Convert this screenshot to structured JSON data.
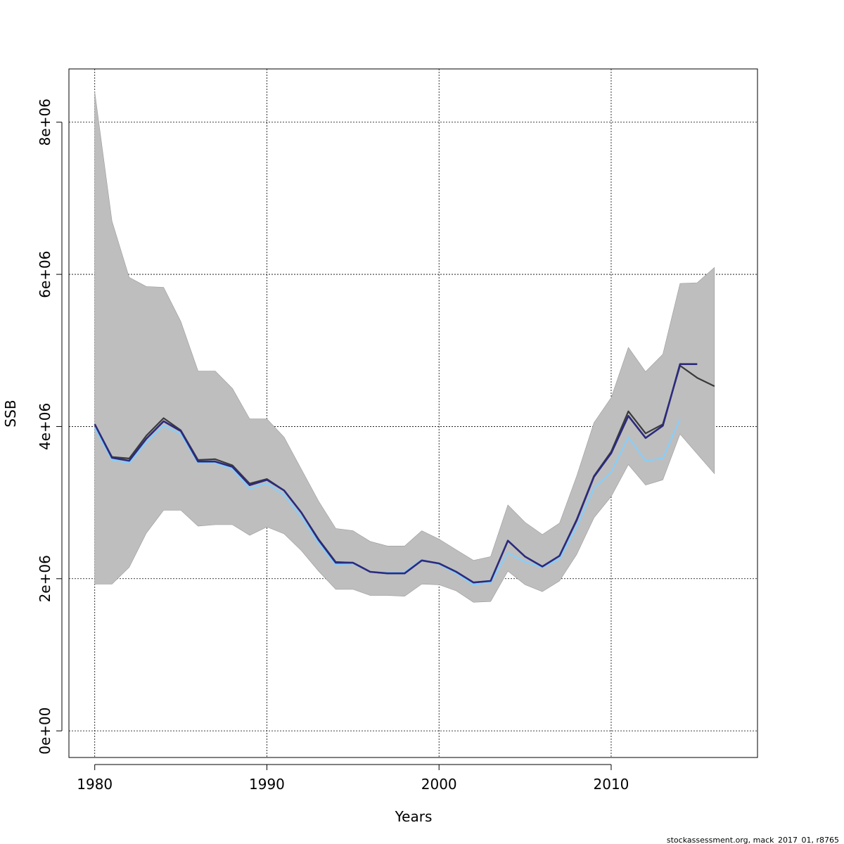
{
  "footer": "stockassessment.org, mack_2017_01, r8765",
  "chart_data": {
    "type": "line",
    "xlabel": "Years",
    "ylabel": "SSB",
    "xlim": [
      1978.5,
      2018.5
    ],
    "ylim": [
      -350000,
      8700000
    ],
    "xticks": [
      1980,
      1990,
      2000,
      2010
    ],
    "xtick_labels": [
      "1980",
      "1990",
      "2000",
      "2010"
    ],
    "yticks": [
      0,
      2000000,
      4000000,
      6000000,
      8000000
    ],
    "ytick_labels": [
      "0e+00",
      "2e+06",
      "4e+06",
      "6e+06",
      "8e+06"
    ],
    "grid": true,
    "band": {
      "color": "#bebebe",
      "x": [
        1980,
        1981,
        1982,
        1983,
        1984,
        1985,
        1986,
        1987,
        1988,
        1989,
        1990,
        1991,
        1992,
        1993,
        1994,
        1995,
        1996,
        1997,
        1998,
        1999,
        2000,
        2001,
        2002,
        2003,
        2004,
        2005,
        2006,
        2007,
        2008,
        2009,
        2010,
        2011,
        2012,
        2013,
        2014,
        2015,
        2016
      ],
      "lower": [
        1930000,
        1930000,
        2150000,
        2600000,
        2900000,
        2900000,
        2690000,
        2710000,
        2710000,
        2570000,
        2680000,
        2590000,
        2370000,
        2100000,
        1860000,
        1860000,
        1780000,
        1780000,
        1770000,
        1930000,
        1920000,
        1840000,
        1690000,
        1700000,
        2100000,
        1920000,
        1830000,
        1970000,
        2320000,
        2800000,
        3080000,
        3500000,
        3230000,
        3300000,
        3900000,
        3640000,
        3380000
      ],
      "upper": [
        8400000,
        6700000,
        5960000,
        5840000,
        5830000,
        5380000,
        4730000,
        4730000,
        4500000,
        4100000,
        4100000,
        3860000,
        3440000,
        3020000,
        2660000,
        2630000,
        2490000,
        2430000,
        2430000,
        2630000,
        2520000,
        2380000,
        2240000,
        2290000,
        2970000,
        2740000,
        2580000,
        2730000,
        3350000,
        4050000,
        4380000,
        5040000,
        4720000,
        4950000,
        5880000,
        5890000,
        6090000
      ]
    },
    "series": [
      {
        "color": "#3a3a3a",
        "x": [
          1980,
          1981,
          1982,
          1983,
          1984,
          1985,
          1986,
          1987,
          1988,
          1989,
          1990,
          1991,
          1992,
          1993,
          1994,
          1995,
          1996,
          1997,
          1998,
          1999,
          2000,
          2001,
          2002,
          2003,
          2004,
          2005,
          2006,
          2007,
          2008,
          2009,
          2010,
          2011,
          2012,
          2013,
          2014,
          2015,
          2016
        ],
        "values": [
          4030000,
          3600000,
          3580000,
          3880000,
          4110000,
          3950000,
          3560000,
          3570000,
          3490000,
          3250000,
          3310000,
          3160000,
          2870000,
          2520000,
          2220000,
          2210000,
          2090000,
          2070000,
          2080000,
          2240000,
          2200000,
          2090000,
          1950000,
          1970000,
          2500000,
          2290000,
          2160000,
          2300000,
          2780000,
          3350000,
          3670000,
          4200000,
          3910000,
          4030000,
          4800000,
          4640000,
          4530000
        ]
      },
      {
        "color": "#87cefa",
        "x": [
          1980,
          1981,
          1982,
          1983,
          1984,
          1985,
          1986,
          1987,
          1988,
          1989,
          1990,
          1991,
          1992,
          1993,
          1994,
          1995,
          1996,
          1997,
          1998,
          1999,
          2000,
          2001,
          2002,
          2003,
          2004,
          2005,
          2006,
          2007,
          2008,
          2009,
          2010,
          2011,
          2012,
          2013,
          2014
        ],
        "values": [
          3980000,
          3560000,
          3520000,
          3790000,
          4010000,
          3900000,
          3520000,
          3520000,
          3440000,
          3180000,
          3250000,
          3100000,
          2810000,
          2470000,
          2180000,
          2200000,
          2090000,
          2080000,
          2090000,
          2250000,
          2190000,
          2070000,
          1920000,
          1950000,
          2340000,
          2220000,
          2150000,
          2260000,
          2680000,
          3190000,
          3400000,
          3860000,
          3550000,
          3580000,
          4100000
        ]
      },
      {
        "color": "#2c2a7e",
        "x": [
          1980,
          1981,
          1982,
          1983,
          1984,
          1985,
          1986,
          1987,
          1988,
          1989,
          1990,
          1991,
          1992,
          1993,
          1994,
          1995,
          1996,
          1997,
          1998,
          1999,
          2000,
          2001,
          2002,
          2003,
          2004,
          2005,
          2006,
          2007,
          2008,
          2009,
          2010,
          2011,
          2012,
          2013,
          2014,
          2015
        ],
        "values": [
          4030000,
          3590000,
          3550000,
          3840000,
          4070000,
          3940000,
          3540000,
          3540000,
          3470000,
          3230000,
          3300000,
          3160000,
          2870000,
          2510000,
          2210000,
          2210000,
          2090000,
          2070000,
          2070000,
          2240000,
          2200000,
          2090000,
          1950000,
          1970000,
          2500000,
          2290000,
          2160000,
          2300000,
          2770000,
          3340000,
          3650000,
          4140000,
          3850000,
          4010000,
          4820000,
          4820000
        ]
      }
    ]
  }
}
